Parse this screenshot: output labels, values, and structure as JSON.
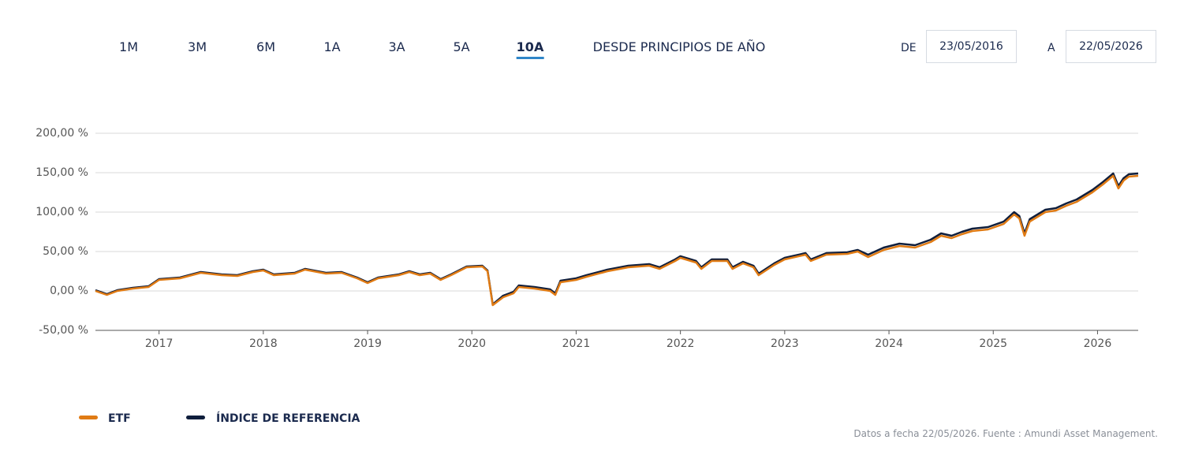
{
  "tabs": [
    "1M",
    "3M",
    "6M",
    "1A",
    "3A",
    "5A",
    "10A",
    "DESDE PRINCIPIOS DE AÑO"
  ],
  "date_range": {
    "from_label": "DE",
    "from": "23/05/2016",
    "to_label": "A",
    "to": "22/05/2026"
  },
  "chart_data": {
    "type": "line",
    "x": [
      2016.39,
      2016.5,
      2016.6,
      2016.75,
      2016.9,
      2017.0,
      2017.2,
      2017.4,
      2017.6,
      2017.75,
      2017.9,
      2018.0,
      2018.1,
      2018.3,
      2018.4,
      2018.6,
      2018.75,
      2018.9,
      2019.0,
      2019.1,
      2019.3,
      2019.4,
      2019.5,
      2019.6,
      2019.7,
      2019.8,
      2019.95,
      2020.1,
      2020.15,
      2020.2,
      2020.3,
      2020.4,
      2020.45,
      2020.6,
      2020.75,
      2020.8,
      2020.85,
      2021.0,
      2021.1,
      2021.3,
      2021.5,
      2021.7,
      2021.8,
      2021.95,
      2022.0,
      2022.15,
      2022.2,
      2022.3,
      2022.45,
      2022.5,
      2022.6,
      2022.7,
      2022.75,
      2022.9,
      2023.0,
      2023.2,
      2023.25,
      2023.4,
      2023.6,
      2023.7,
      2023.8,
      2023.95,
      2024.1,
      2024.25,
      2024.4,
      2024.5,
      2024.6,
      2024.7,
      2024.8,
      2024.95,
      2025.1,
      2025.2,
      2025.25,
      2025.3,
      2025.35,
      2025.5,
      2025.6,
      2025.7,
      2025.8,
      2025.95,
      2026.05,
      2026.15,
      2026.2,
      2026.25,
      2026.3,
      2026.39
    ],
    "series": [
      {
        "name": "ÍNDICE DE REFERENCIA",
        "color": "#0f1e3c",
        "values": [
          1,
          -4,
          1,
          4,
          6,
          15,
          17,
          24,
          21,
          20,
          25,
          27,
          21,
          23,
          28,
          23,
          24,
          17,
          11,
          17,
          21,
          25,
          21,
          23,
          15,
          21,
          31,
          32,
          26,
          -17,
          -6,
          -1,
          7,
          5,
          2,
          -3,
          13,
          16,
          20,
          27,
          32,
          34,
          30,
          40,
          44,
          38,
          30,
          40,
          40,
          30,
          37,
          32,
          22,
          35,
          42,
          48,
          40,
          48,
          49,
          52,
          46,
          55,
          60,
          58,
          65,
          73,
          70,
          75,
          79,
          81,
          88,
          100,
          95,
          73,
          91,
          103,
          105,
          111,
          116,
          128,
          138,
          149,
          133,
          143,
          148,
          149
        ]
      },
      {
        "name": "ETF",
        "color": "#e07b14",
        "values": [
          0,
          -5,
          0,
          3,
          5,
          14,
          16,
          23,
          20,
          19,
          24,
          26,
          20,
          22,
          27,
          22,
          23,
          16,
          10,
          16,
          20,
          24,
          20,
          22,
          14,
          20,
          30,
          31,
          25,
          -18,
          -8,
          -3,
          5,
          3,
          0,
          -5,
          11,
          14,
          18,
          25,
          30,
          32,
          28,
          38,
          42,
          36,
          28,
          38,
          38,
          28,
          35,
          30,
          20,
          33,
          40,
          46,
          38,
          46,
          47,
          50,
          43,
          52,
          57,
          55,
          62,
          70,
          67,
          72,
          76,
          78,
          85,
          97,
          92,
          70,
          88,
          100,
          102,
          108,
          113,
          125,
          135,
          146,
          130,
          140,
          145,
          146
        ]
      }
    ],
    "xlim": [
      2016.39,
      2026.39
    ],
    "xticks": [
      2017,
      2018,
      2019,
      2020,
      2021,
      2022,
      2023,
      2024,
      2025,
      2026
    ],
    "ylim": [
      -50,
      200
    ],
    "yticks": [
      {
        "value": -50,
        "label": "-50,00 %"
      },
      {
        "value": 0,
        "label": "0,00 %"
      },
      {
        "value": 50,
        "label": "50,00 %"
      },
      {
        "value": 100,
        "label": "100,00 %"
      },
      {
        "value": 150,
        "label": "150,00 %"
      },
      {
        "value": 200,
        "label": "200,00 %"
      }
    ],
    "grid": true
  },
  "footer": "Datos a fecha 22/05/2026. Fuente : Amundi Asset Management."
}
